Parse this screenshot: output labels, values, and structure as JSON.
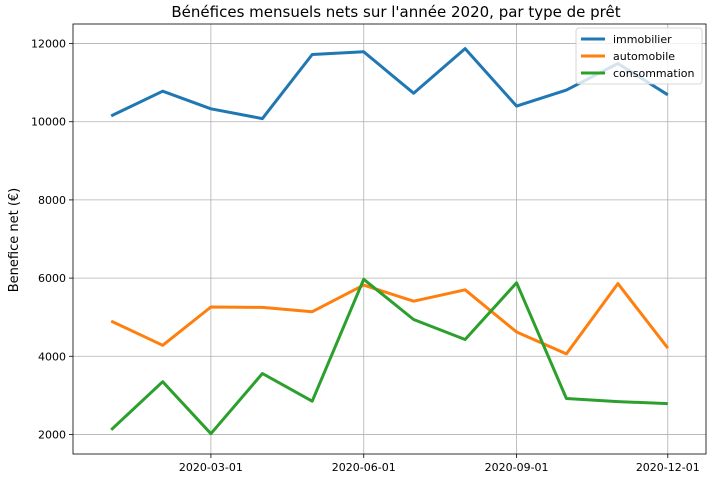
{
  "chart_data": {
    "type": "line",
    "title": "Bénéfices mensuels nets sur l'année 2020, par type de prêt",
    "xlabel": "",
    "ylabel": "Benefice net (€)",
    "x": [
      "2020-01-01",
      "2020-02-01",
      "2020-03-01",
      "2020-04-01",
      "2020-05-01",
      "2020-06-01",
      "2020-07-01",
      "2020-08-01",
      "2020-09-01",
      "2020-10-01",
      "2020-11-01",
      "2020-12-01"
    ],
    "xticks": [
      "2020-03-01",
      "2020-06-01",
      "2020-09-01",
      "2020-12-01"
    ],
    "xlim": [
      "2019-12-09",
      "2020-12-24"
    ],
    "ylim": [
      1500,
      12500
    ],
    "yticks": [
      2000,
      4000,
      6000,
      8000,
      10000,
      12000
    ],
    "grid": true,
    "legend_position": "top-right",
    "series": [
      {
        "name": "immobilier",
        "color": "#1f77b4",
        "values": [
          10150,
          10780,
          10330,
          10080,
          11720,
          11790,
          10730,
          11870,
          10400,
          10810,
          11490,
          10690
        ]
      },
      {
        "name": "automobile",
        "color": "#ff7f0e",
        "values": [
          4900,
          4280,
          5260,
          5250,
          5140,
          5820,
          5410,
          5700,
          4620,
          4060,
          5860,
          4210
        ]
      },
      {
        "name": "consommation",
        "color": "#2ca02c",
        "values": [
          2120,
          3350,
          2020,
          3560,
          2850,
          5970,
          4940,
          4430,
          5880,
          2920,
          2840,
          2790
        ]
      }
    ]
  }
}
